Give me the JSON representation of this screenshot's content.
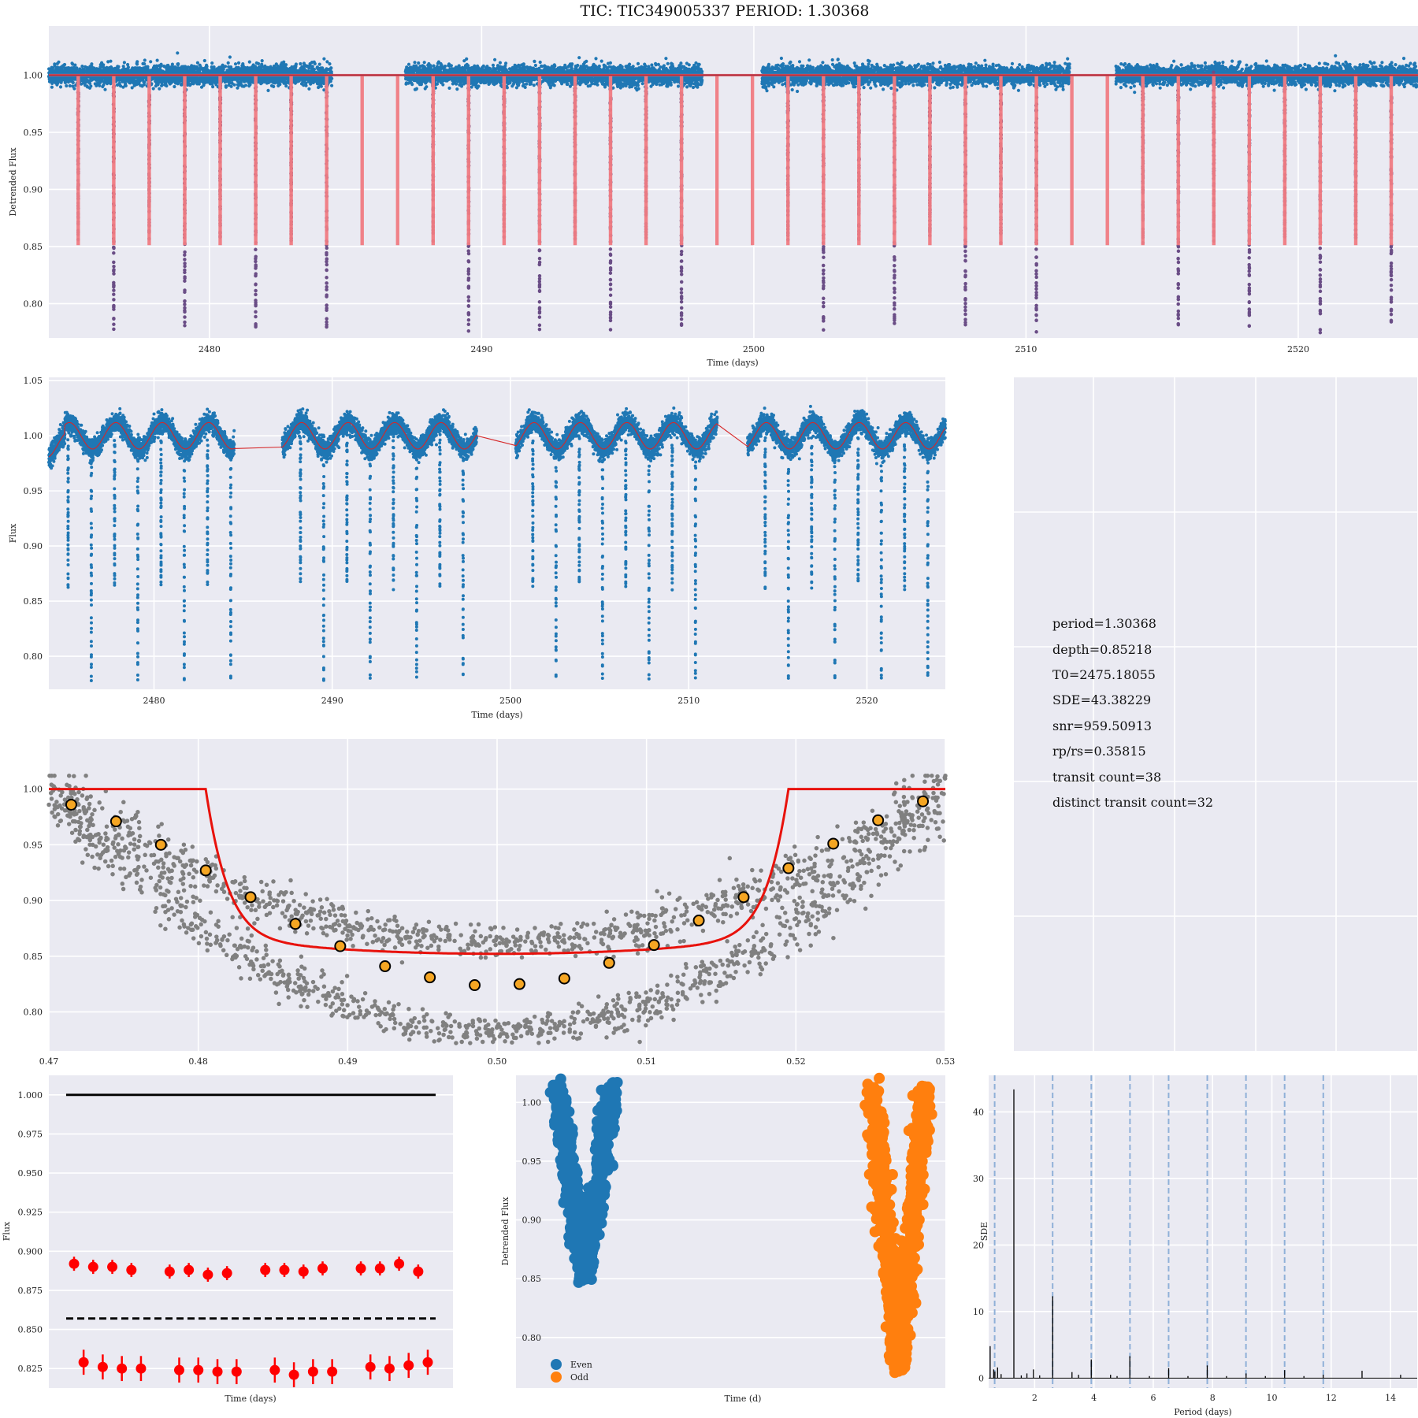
{
  "title": "TIC: TIC349005337 PERIOD: 1.30368",
  "colors": {
    "panel_bg": "#eaeaf2",
    "grid": "#ffffff",
    "data_blue": "#1f77b4",
    "model_red": "#f07b82",
    "trend_red": "#d62728",
    "fold_gray": "#808080",
    "fold_bin": "#f5a623",
    "odd_orange": "#ff7f0e",
    "marker_red": "#ff0000"
  },
  "chart_data": [
    {
      "id": "detrended_lightcurve",
      "type": "scatter",
      "xlabel": "Time (days)",
      "ylabel": "Detrended Flux",
      "xlim": [
        2474.1,
        2524.4
      ],
      "ylim": [
        0.77,
        1.043
      ],
      "xticks": [
        2480,
        2490,
        2500,
        2510,
        2520
      ],
      "yticks": [
        0.8,
        0.85,
        0.9,
        0.95,
        1.0
      ],
      "ytick_labels": [
        "0.80",
        "0.85",
        "0.90",
        "0.95",
        "1.00"
      ],
      "segments": [
        [
          2474.1,
          2484.5
        ],
        [
          2487.2,
          2498.1
        ],
        [
          2500.3,
          2511.6
        ],
        [
          2513.3,
          2524.4
        ]
      ],
      "period": 1.30368,
      "t0": 2475.18055,
      "model_depth": 0.85218,
      "deep_eclipse_min": 0.778,
      "series": [
        {
          "kind": "points",
          "marker": "data_blue"
        },
        {
          "kind": "line",
          "marker": "model_red"
        }
      ]
    },
    {
      "id": "raw_lightcurve",
      "type": "scatter",
      "xlabel": "Time (days)",
      "ylabel": "Flux",
      "xlim": [
        2474.1,
        2524.4
      ],
      "ylim": [
        0.77,
        1.053
      ],
      "xticks": [
        2480,
        2490,
        2500,
        2510,
        2520
      ],
      "yticks": [
        0.8,
        0.85,
        0.9,
        0.95,
        1.0,
        1.05
      ],
      "ytick_labels": [
        "0.80",
        "0.85",
        "0.90",
        "0.95",
        "1.00",
        "1.05"
      ],
      "variability_amplitude": 0.012,
      "variability_period": 2.607,
      "series": [
        {
          "kind": "points",
          "marker": "data_blue"
        },
        {
          "kind": "line",
          "marker": "trend_red"
        }
      ]
    },
    {
      "id": "folded_transit",
      "type": "scatter",
      "xlabel": "",
      "ylabel": "",
      "xlim": [
        0.47,
        0.53
      ],
      "ylim": [
        0.765,
        1.045
      ],
      "xticks": [
        0.47,
        0.48,
        0.49,
        0.5,
        0.51,
        0.52,
        0.53
      ],
      "xtick_labels": [
        "0.47",
        "0.48",
        "0.49",
        "0.50",
        "0.51",
        "0.52",
        "0.53"
      ],
      "yticks": [
        0.8,
        0.85,
        0.9,
        0.95,
        1.0
      ],
      "ytick_labels": [
        "0.80",
        "0.85",
        "0.90",
        "0.95",
        "1.00"
      ],
      "ingress": 0.4805,
      "egress": 0.5195,
      "bins": {
        "x": [
          0.4715,
          0.4745,
          0.4775,
          0.4805,
          0.4835,
          0.4865,
          0.4895,
          0.4925,
          0.4955,
          0.4985,
          0.5015,
          0.5045,
          0.5075,
          0.5105,
          0.5135,
          0.5165,
          0.5195,
          0.5225,
          0.5255,
          0.5285
        ],
        "y": [
          0.986,
          0.971,
          0.95,
          0.927,
          0.903,
          0.879,
          0.859,
          0.841,
          0.831,
          0.824,
          0.825,
          0.83,
          0.844,
          0.86,
          0.882,
          0.903,
          0.929,
          0.951,
          0.972,
          0.989
        ]
      }
    },
    {
      "id": "transit_depths",
      "type": "scatter",
      "xlabel": "Time (days)",
      "ylabel": "Flux",
      "ylim": [
        0.8125,
        1.0125
      ],
      "yticks": [
        0.825,
        0.85,
        0.875,
        0.9,
        0.925,
        0.95,
        0.975,
        1.0
      ],
      "ytick_labels": [
        "0.825",
        "0.850",
        "0.875",
        "0.900",
        "0.925",
        "0.950",
        "0.975",
        "1.000"
      ],
      "reference_solid": 1.0,
      "reference_dashed": 0.857,
      "upper_group": [
        0.892,
        0.89,
        0.89,
        0.888,
        0.887,
        0.888,
        0.885,
        0.886,
        0.888,
        0.888,
        0.887,
        0.889,
        0.889,
        0.889,
        0.892,
        0.887
      ],
      "upper_x": [
        1,
        2,
        3,
        4,
        6,
        7,
        8,
        9,
        11,
        12,
        13,
        14,
        16,
        17,
        18,
        19
      ],
      "lower_group": [
        0.829,
        0.826,
        0.825,
        0.825,
        0.824,
        0.824,
        0.823,
        0.823,
        0.824,
        0.821,
        0.823,
        0.823,
        0.826,
        0.825,
        0.827,
        0.829
      ],
      "lower_x": [
        1.5,
        2.5,
        3.5,
        4.5,
        6.5,
        7.5,
        8.5,
        9.5,
        11.5,
        12.5,
        13.5,
        14.5,
        16.5,
        17.5,
        18.5,
        19.5
      ]
    },
    {
      "id": "even_odd",
      "type": "scatter",
      "xlabel": "Time (d)",
      "ylabel": "Detrended Flux",
      "ylim": [
        0.757,
        1.023
      ],
      "yticks": [
        0.8,
        0.85,
        0.9,
        0.95,
        1.0
      ],
      "ytick_labels": [
        "0.80",
        "0.85",
        "0.90",
        "0.95",
        "1.00"
      ],
      "even_min": 0.852,
      "odd_min": 0.773,
      "legend": [
        "Even",
        "Odd"
      ]
    },
    {
      "id": "periodogram",
      "type": "line",
      "xlabel": "Period (days)",
      "ylabel": "SDE",
      "xlim": [
        0.45,
        14.9
      ],
      "ylim": [
        -1.5,
        45.5
      ],
      "xticks": [
        2,
        4,
        6,
        8,
        10,
        12,
        14
      ],
      "yticks": [
        0,
        10,
        20,
        30,
        40
      ],
      "peak_period": 1.30368,
      "peak_sde": 43.38229,
      "harmonic_lines": [
        0.652,
        2.607,
        3.911,
        5.215,
        6.518,
        7.822,
        9.126,
        10.429,
        11.733
      ],
      "spikes": [
        {
          "x": 0.5,
          "y": 4.8
        },
        {
          "x": 0.62,
          "y": 1.3
        },
        {
          "x": 0.66,
          "y": 1.0
        },
        {
          "x": 0.75,
          "y": 1.6
        },
        {
          "x": 0.87,
          "y": 0.6
        },
        {
          "x": 1.3,
          "y": 43.38
        },
        {
          "x": 1.55,
          "y": 0.4
        },
        {
          "x": 1.74,
          "y": 0.7
        },
        {
          "x": 1.96,
          "y": 1.3
        },
        {
          "x": 2.17,
          "y": 0.4
        },
        {
          "x": 2.61,
          "y": 12.3
        },
        {
          "x": 3.26,
          "y": 0.9
        },
        {
          "x": 3.48,
          "y": 0.5
        },
        {
          "x": 3.91,
          "y": 2.8
        },
        {
          "x": 4.56,
          "y": 0.5
        },
        {
          "x": 4.78,
          "y": 0.3
        },
        {
          "x": 5.21,
          "y": 3.3
        },
        {
          "x": 5.87,
          "y": 0.3
        },
        {
          "x": 6.52,
          "y": 1.5
        },
        {
          "x": 7.17,
          "y": 0.3
        },
        {
          "x": 7.82,
          "y": 1.9
        },
        {
          "x": 8.47,
          "y": 0.3
        },
        {
          "x": 9.13,
          "y": 0.7
        },
        {
          "x": 9.78,
          "y": 0.3
        },
        {
          "x": 10.43,
          "y": 1.2
        },
        {
          "x": 11.08,
          "y": 0.3
        },
        {
          "x": 11.73,
          "y": 0.5
        },
        {
          "x": 13.04,
          "y": 1.1
        },
        {
          "x": 14.34,
          "y": 0.5
        }
      ]
    }
  ],
  "stats_panel": {
    "lines": [
      "period=1.30368",
      "depth=0.85218",
      "T0=2475.18055",
      "SDE=43.38229",
      "snr=959.50913",
      "rp/rs=0.35815",
      "transit count=38",
      "distinct transit count=32"
    ]
  }
}
